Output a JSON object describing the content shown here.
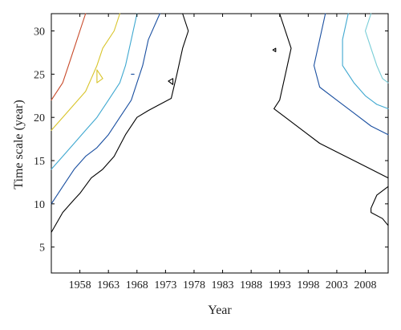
{
  "chart_data": {
    "type": "contour",
    "xlabel": "Year",
    "ylabel": "Time scale (year)",
    "xlim": [
      1953,
      2012
    ],
    "ylim": [
      2,
      32
    ],
    "x_ticks": [
      1958,
      1963,
      1968,
      1973,
      1978,
      1983,
      1988,
      1993,
      1998,
      2003,
      2008
    ],
    "y_ticks": [
      5,
      10,
      15,
      20,
      25,
      30
    ],
    "grid": false,
    "contours": [
      {
        "color": "#000000",
        "points": [
          [
            1953,
            6.7
          ],
          [
            1955,
            9
          ],
          [
            1957,
            10.5
          ],
          [
            1958,
            11.2
          ],
          [
            1960,
            13
          ],
          [
            1962,
            14
          ],
          [
            1964,
            15.5
          ],
          [
            1966,
            18
          ],
          [
            1968,
            20
          ],
          [
            1970,
            20.8
          ],
          [
            1972,
            21.5
          ],
          [
            1974,
            22.2
          ],
          [
            1975,
            25
          ],
          [
            1976,
            28
          ],
          [
            1977,
            30
          ],
          [
            1976,
            32
          ]
        ]
      },
      {
        "color": "#000000",
        "points": [
          [
            1993,
            32
          ],
          [
            1995,
            28
          ],
          [
            1994,
            25
          ],
          [
            1993,
            22
          ],
          [
            1992,
            21
          ],
          [
            1994,
            20
          ],
          [
            1997,
            18.5
          ],
          [
            2000,
            17
          ],
          [
            2003,
            16
          ],
          [
            2006,
            15
          ],
          [
            2009,
            14
          ],
          [
            2012,
            13
          ]
        ]
      },
      {
        "color": "#000000",
        "points": [
          [
            2012,
            12
          ],
          [
            2010,
            11
          ],
          [
            2009,
            9.5
          ],
          [
            2009,
            9
          ],
          [
            2011,
            8.3
          ],
          [
            2012,
            7.5
          ]
        ]
      },
      {
        "color": "#1a4fa0",
        "points": [
          [
            1953,
            10
          ],
          [
            1955,
            12
          ],
          [
            1957,
            14
          ],
          [
            1959,
            15.5
          ],
          [
            1961,
            16.5
          ],
          [
            1963,
            18
          ],
          [
            1965,
            20
          ],
          [
            1967,
            22
          ],
          [
            1968,
            24
          ],
          [
            1969,
            26
          ],
          [
            1970,
            29
          ],
          [
            1972,
            32
          ]
        ]
      },
      {
        "color": "#1a4fa0",
        "points": [
          [
            2001,
            32
          ],
          [
            2000,
            29
          ],
          [
            1999,
            26
          ],
          [
            2000,
            23.5
          ],
          [
            2003,
            22
          ],
          [
            2006,
            20.5
          ],
          [
            2009,
            19
          ],
          [
            2012,
            18
          ]
        ]
      },
      {
        "color": "#3fa8d0",
        "points": [
          [
            1953,
            14
          ],
          [
            1955,
            15.5
          ],
          [
            1957,
            17
          ],
          [
            1959,
            18.5
          ],
          [
            1961,
            20
          ],
          [
            1963,
            22
          ],
          [
            1965,
            24
          ],
          [
            1966,
            26
          ],
          [
            1967,
            29
          ],
          [
            1968,
            32
          ]
        ]
      },
      {
        "color": "#3fa8d0",
        "points": [
          [
            2005,
            32
          ],
          [
            2004,
            29
          ],
          [
            2004,
            26
          ],
          [
            2006,
            24
          ],
          [
            2008,
            22.5
          ],
          [
            2010,
            21.5
          ],
          [
            2012,
            21
          ]
        ]
      },
      {
        "color": "#78cdd7",
        "points": [
          [
            2009,
            32
          ],
          [
            2008,
            30
          ],
          [
            2009,
            28
          ],
          [
            2010,
            26
          ],
          [
            2011,
            24.5
          ],
          [
            2012,
            24
          ]
        ]
      },
      {
        "color": "#d8c42a",
        "points": [
          [
            1953,
            18.5
          ],
          [
            1955,
            20
          ],
          [
            1957,
            21.5
          ],
          [
            1959,
            23
          ],
          [
            1960,
            24.5
          ],
          [
            1961,
            26
          ],
          [
            1962,
            28
          ],
          [
            1964,
            30
          ],
          [
            1965,
            32
          ]
        ]
      },
      {
        "color": "#d8c42a",
        "points": [
          [
            1961,
            25.5
          ],
          [
            1962,
            24.5
          ],
          [
            1961,
            24
          ],
          [
            1961,
            25.5
          ]
        ]
      },
      {
        "color": "#c84a2a",
        "points": [
          [
            1953,
            22
          ],
          [
            1955,
            24
          ],
          [
            1956,
            26
          ],
          [
            1957,
            28
          ],
          [
            1958,
            30
          ],
          [
            1959,
            32
          ]
        ]
      },
      {
        "color": "#000000",
        "points": [
          [
            1973.5,
            24.2
          ],
          [
            1974.3,
            24.5
          ],
          [
            1974.3,
            23.8
          ],
          [
            1973.5,
            24.2
          ]
        ]
      },
      {
        "color": "#000000",
        "points": [
          [
            1991.8,
            27.8
          ],
          [
            1992.3,
            28.0
          ],
          [
            1992.3,
            27.6
          ],
          [
            1991.8,
            27.8
          ]
        ]
      },
      {
        "color": "#1a4fa0",
        "points": [
          [
            1967.0,
            25.0
          ],
          [
            1967.5,
            25.0
          ]
        ]
      }
    ]
  }
}
